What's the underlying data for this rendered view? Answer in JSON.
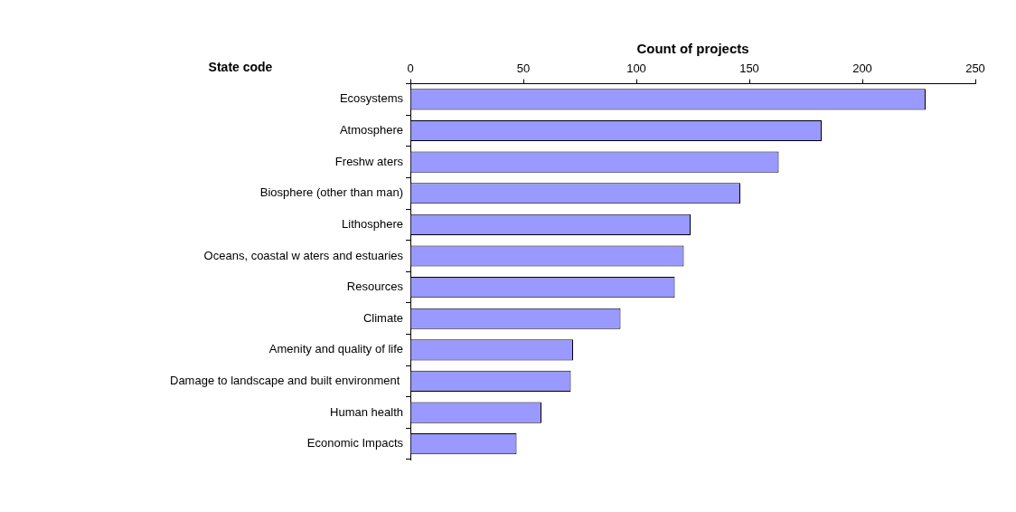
{
  "chart_data": {
    "type": "bar",
    "orientation": "horizontal",
    "xlabel": "Count of projects",
    "ylabel": "State code",
    "categories": [
      "Ecosystems",
      "Atmosphere",
      "Freshw aters",
      "Biosphere (other than man)",
      "Lithosphere",
      "Oceans, coastal w aters and estuaries",
      "Resources",
      "Climate",
      "Amenity and quality of life",
      "Damage to landscape and built environment ",
      "Human health",
      "Economic Impacts"
    ],
    "values": [
      228,
      182,
      163,
      146,
      124,
      121,
      117,
      93,
      72,
      71,
      58,
      47
    ],
    "color": "#9999ff",
    "xlim": [
      0,
      250
    ],
    "xticks": [
      0,
      50,
      100,
      150,
      200,
      250
    ],
    "grid": false,
    "legend": false
  }
}
